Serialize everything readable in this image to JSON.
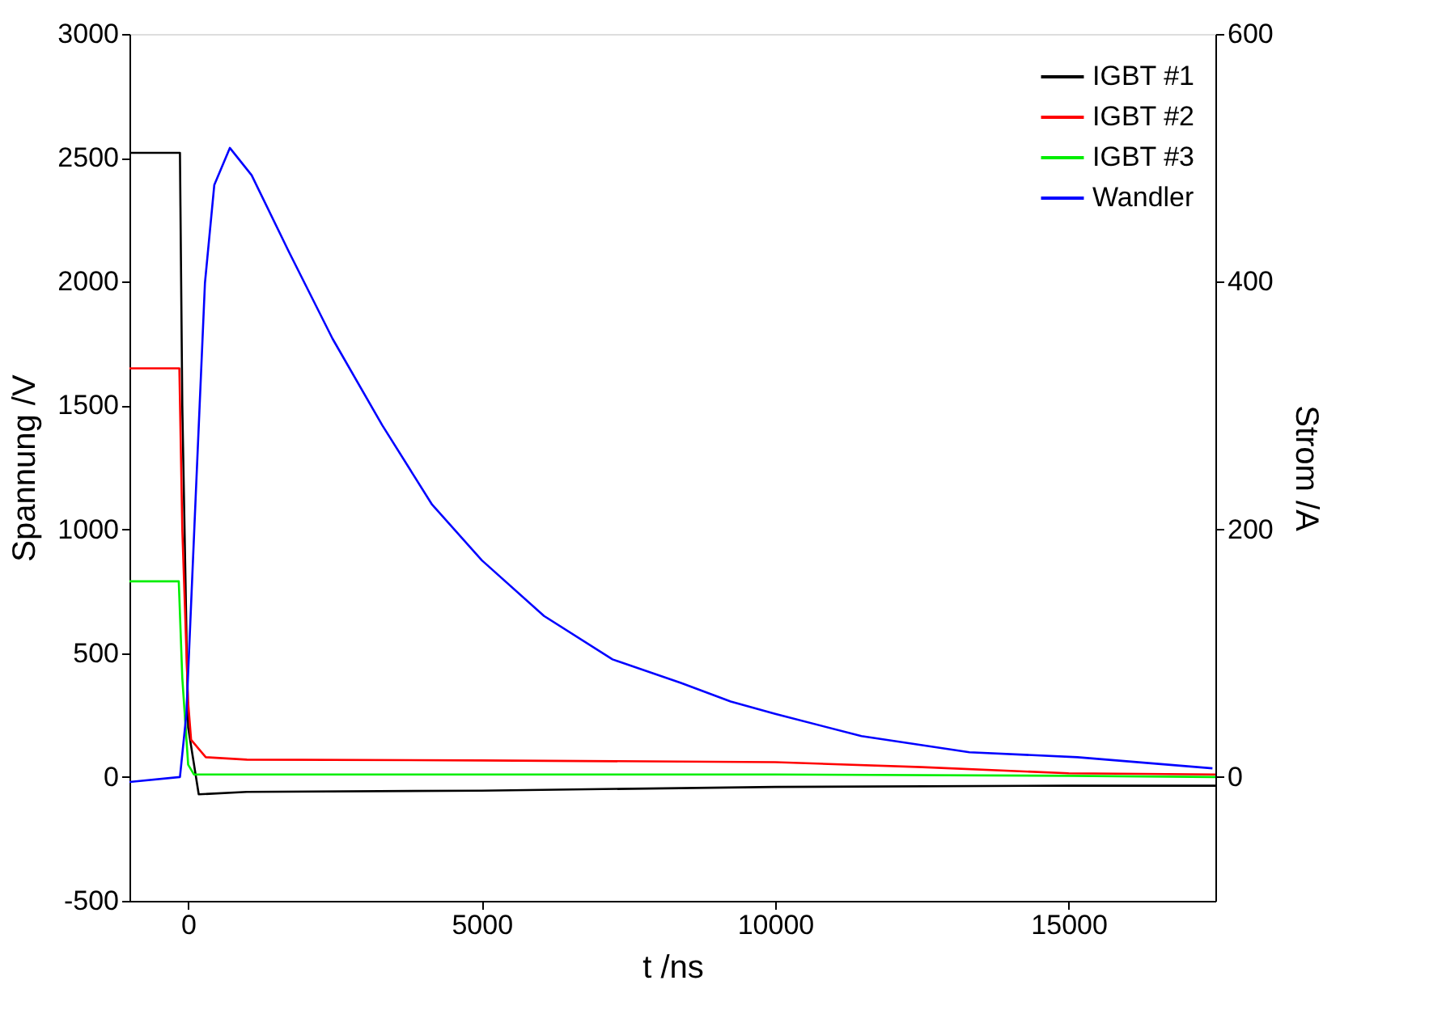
{
  "chart_data": {
    "type": "line",
    "xlabel": "t /ns",
    "ylabel": "Spannung /V",
    "y2label": "Strom /A",
    "xlim": [
      -1000,
      17500
    ],
    "xticks": [
      0,
      5000,
      10000,
      15000
    ],
    "ylim": [
      -500,
      3000
    ],
    "yticks": [
      -500,
      0,
      500,
      1000,
      1500,
      2000,
      2500,
      3000
    ],
    "y2lim": [
      -100,
      600
    ],
    "y2ticks": [
      0,
      200,
      400,
      600
    ],
    "grid": false,
    "legend": "top right",
    "line_style": "solid",
    "marker": "none",
    "series": [
      {
        "name": "IGBT #1",
        "color": "#000000",
        "x": [
          -1000,
          -140,
          -100,
          0,
          180,
          1000,
          5000,
          10000,
          15000,
          17500
        ],
        "values": [
          2520,
          2520,
          1500,
          200,
          -70,
          -60,
          -55,
          -40,
          -35,
          -35
        ]
      },
      {
        "name": "IGBT #2",
        "color": "#ff0000",
        "x": [
          -1000,
          -150,
          -100,
          0,
          50,
          300,
          1000,
          5000,
          10000,
          12500,
          15000,
          17500
        ],
        "values": [
          1650,
          1650,
          1000,
          300,
          150,
          80,
          70,
          67,
          60,
          40,
          15,
          10
        ]
      },
      {
        "name": "IGBT #3",
        "color": "#00ee00",
        "x": [
          -1000,
          -160,
          -100,
          0,
          100,
          1000,
          5000,
          10000,
          15000,
          17500
        ],
        "values": [
          790,
          790,
          400,
          50,
          10,
          10,
          10,
          10,
          5,
          0
        ]
      },
      {
        "name": "Wandler",
        "color": "#0000ff",
        "axis": "y2",
        "x": [
          -1000,
          -140,
          -30,
          127,
          286,
          445,
          710,
          1081,
          1717,
          2459,
          3307,
          4155,
          5003,
          6063,
          7229,
          8395,
          9243,
          10000,
          11470,
          13310,
          15150,
          17450
        ],
        "values": [
          -4,
          0,
          51,
          225,
          399,
          478,
          508,
          486,
          424,
          354,
          284,
          220,
          175,
          130,
          95,
          76,
          61,
          51,
          33,
          20,
          16,
          7
        ]
      }
    ]
  }
}
